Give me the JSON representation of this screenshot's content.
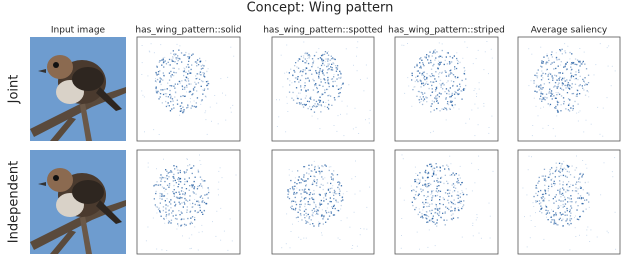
{
  "figure": {
    "title": "Concept: Wing pattern",
    "columns": [
      "Input image",
      "has_wing_pattern::solid",
      "has_wing_pattern::spotted",
      "has_wing_pattern::striped",
      "Average saliency"
    ],
    "rows": [
      "Joint",
      "Independent"
    ]
  }
}
